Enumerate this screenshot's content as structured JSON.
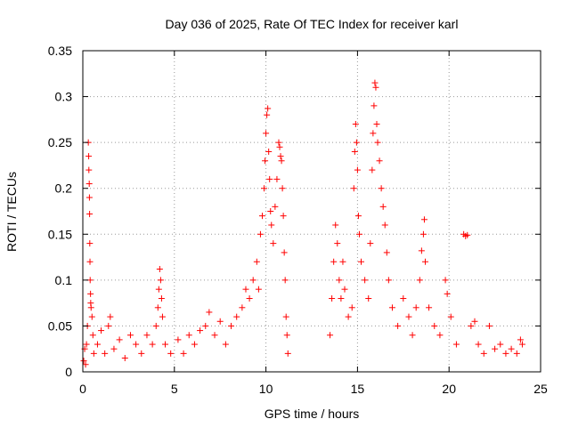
{
  "chart_data": {
    "type": "scatter",
    "title": "Day 036 of 2025, Rate Of TEC Index for receiver karl",
    "xlabel": "GPS time / hours",
    "ylabel": "ROTI / TECUs",
    "xlim": [
      0,
      25
    ],
    "ylim": [
      0,
      0.35
    ],
    "x_ticks": [
      0,
      5,
      10,
      15,
      20,
      25
    ],
    "x_tick_labels": [
      "0",
      "5",
      "10",
      "15",
      "20",
      "25"
    ],
    "y_ticks": [
      0,
      0.05,
      0.1,
      0.15,
      0.2,
      0.25,
      0.3,
      0.35
    ],
    "y_tick_labels": [
      "0",
      "0.05",
      "0.1",
      "0.15",
      "0.2",
      "0.25",
      "0.3",
      "0.35"
    ],
    "grid": true,
    "marker": "+",
    "marker_color": "#ff0000",
    "series": [
      {
        "points": [
          [
            0.05,
            0.012
          ],
          [
            0.1,
            0.025
          ],
          [
            0.15,
            0.008
          ],
          [
            0.2,
            0.03
          ],
          [
            0.25,
            0.05
          ],
          [
            0.3,
            0.25
          ],
          [
            0.32,
            0.235
          ],
          [
            0.33,
            0.22
          ],
          [
            0.35,
            0.205
          ],
          [
            0.36,
            0.19
          ],
          [
            0.37,
            0.172
          ],
          [
            0.38,
            0.14
          ],
          [
            0.39,
            0.12
          ],
          [
            0.4,
            0.1
          ],
          [
            0.42,
            0.085
          ],
          [
            0.43,
            0.075
          ],
          [
            0.45,
            0.07
          ],
          [
            0.5,
            0.06
          ],
          [
            0.55,
            0.04
          ],
          [
            0.6,
            0.02
          ],
          [
            0.8,
            0.03
          ],
          [
            1.0,
            0.045
          ],
          [
            1.2,
            0.02
          ],
          [
            1.4,
            0.05
          ],
          [
            1.5,
            0.06
          ],
          [
            1.7,
            0.025
          ],
          [
            2.0,
            0.035
          ],
          [
            2.3,
            0.015
          ],
          [
            2.6,
            0.04
          ],
          [
            2.9,
            0.03
          ],
          [
            3.2,
            0.02
          ],
          [
            3.5,
            0.04
          ],
          [
            3.8,
            0.03
          ],
          [
            4.0,
            0.05
          ],
          [
            4.1,
            0.07
          ],
          [
            4.15,
            0.09
          ],
          [
            4.2,
            0.112
          ],
          [
            4.25,
            0.1
          ],
          [
            4.3,
            0.08
          ],
          [
            4.35,
            0.06
          ],
          [
            4.5,
            0.03
          ],
          [
            4.8,
            0.02
          ],
          [
            5.2,
            0.035
          ],
          [
            5.5,
            0.02
          ],
          [
            5.8,
            0.04
          ],
          [
            6.1,
            0.03
          ],
          [
            6.4,
            0.045
          ],
          [
            6.7,
            0.05
          ],
          [
            6.9,
            0.065
          ],
          [
            7.2,
            0.04
          ],
          [
            7.5,
            0.055
          ],
          [
            7.8,
            0.03
          ],
          [
            8.1,
            0.05
          ],
          [
            8.4,
            0.06
          ],
          [
            8.7,
            0.07
          ],
          [
            8.9,
            0.09
          ],
          [
            9.1,
            0.08
          ],
          [
            9.3,
            0.1
          ],
          [
            9.5,
            0.12
          ],
          [
            9.6,
            0.09
          ],
          [
            9.7,
            0.15
          ],
          [
            9.8,
            0.17
          ],
          [
            9.9,
            0.2
          ],
          [
            9.95,
            0.23
          ],
          [
            10.0,
            0.26
          ],
          [
            10.05,
            0.28
          ],
          [
            10.1,
            0.287
          ],
          [
            10.15,
            0.24
          ],
          [
            10.2,
            0.21
          ],
          [
            10.25,
            0.175
          ],
          [
            10.3,
            0.16
          ],
          [
            10.4,
            0.14
          ],
          [
            10.5,
            0.18
          ],
          [
            10.6,
            0.21
          ],
          [
            10.7,
            0.25
          ],
          [
            10.75,
            0.245
          ],
          [
            10.8,
            0.235
          ],
          [
            10.85,
            0.23
          ],
          [
            10.9,
            0.2
          ],
          [
            10.95,
            0.17
          ],
          [
            11.0,
            0.13
          ],
          [
            11.05,
            0.1
          ],
          [
            11.1,
            0.06
          ],
          [
            11.15,
            0.04
          ],
          [
            11.2,
            0.02
          ],
          [
            13.5,
            0.04
          ],
          [
            13.6,
            0.08
          ],
          [
            13.7,
            0.12
          ],
          [
            13.8,
            0.16
          ],
          [
            13.9,
            0.14
          ],
          [
            14.0,
            0.1
          ],
          [
            14.1,
            0.08
          ],
          [
            14.2,
            0.12
          ],
          [
            14.3,
            0.09
          ],
          [
            14.5,
            0.06
          ],
          [
            14.7,
            0.07
          ],
          [
            14.8,
            0.2
          ],
          [
            14.85,
            0.24
          ],
          [
            14.9,
            0.27
          ],
          [
            14.95,
            0.25
          ],
          [
            15.0,
            0.22
          ],
          [
            15.05,
            0.17
          ],
          [
            15.1,
            0.15
          ],
          [
            15.2,
            0.12
          ],
          [
            15.4,
            0.1
          ],
          [
            15.6,
            0.08
          ],
          [
            15.7,
            0.14
          ],
          [
            15.8,
            0.22
          ],
          [
            15.85,
            0.26
          ],
          [
            15.9,
            0.29
          ],
          [
            15.95,
            0.315
          ],
          [
            16.0,
            0.31
          ],
          [
            16.05,
            0.27
          ],
          [
            16.1,
            0.25
          ],
          [
            16.2,
            0.23
          ],
          [
            16.3,
            0.2
          ],
          [
            16.4,
            0.18
          ],
          [
            16.5,
            0.16
          ],
          [
            16.6,
            0.13
          ],
          [
            16.7,
            0.1
          ],
          [
            16.9,
            0.07
          ],
          [
            17.2,
            0.05
          ],
          [
            17.5,
            0.08
          ],
          [
            17.8,
            0.06
          ],
          [
            18.0,
            0.04
          ],
          [
            18.2,
            0.07
          ],
          [
            18.4,
            0.1
          ],
          [
            18.5,
            0.132
          ],
          [
            18.6,
            0.15
          ],
          [
            18.65,
            0.166
          ],
          [
            18.7,
            0.12
          ],
          [
            18.9,
            0.07
          ],
          [
            19.2,
            0.05
          ],
          [
            19.5,
            0.04
          ],
          [
            19.8,
            0.1
          ],
          [
            19.9,
            0.085
          ],
          [
            20.1,
            0.06
          ],
          [
            20.4,
            0.03
          ],
          [
            20.8,
            0.15
          ],
          [
            20.9,
            0.148
          ],
          [
            21.0,
            0.149
          ],
          [
            21.2,
            0.05
          ],
          [
            21.4,
            0.055
          ],
          [
            21.6,
            0.03
          ],
          [
            21.9,
            0.02
          ],
          [
            22.2,
            0.05
          ],
          [
            22.5,
            0.025
          ],
          [
            22.8,
            0.03
          ],
          [
            23.1,
            0.02
          ],
          [
            23.4,
            0.025
          ],
          [
            23.7,
            0.02
          ],
          [
            23.9,
            0.035
          ],
          [
            24.0,
            0.03
          ]
        ]
      }
    ]
  }
}
